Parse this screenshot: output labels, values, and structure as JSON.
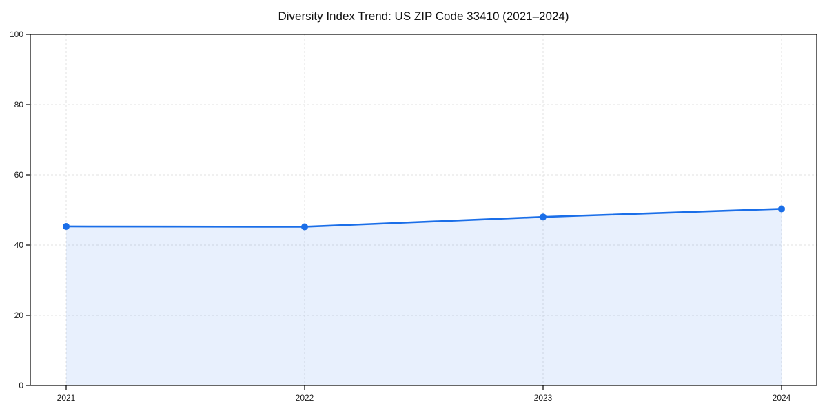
{
  "page": {
    "background_color": "#ffffff"
  },
  "chart_data": {
    "type": "area",
    "title": "Diversity Index Trend: US ZIP Code 33410 (2021–2024)",
    "categories": [
      "2021",
      "2022",
      "2023",
      "2024"
    ],
    "series": [
      {
        "name": "Diversity Index",
        "values": [
          45.3,
          45.2,
          48.0,
          50.3
        ]
      }
    ],
    "xlabel": "",
    "ylabel": "",
    "ylim": [
      0,
      100
    ],
    "y_ticks": [
      0,
      20,
      40,
      60,
      80,
      100
    ],
    "x_tick_labels": [
      "2021",
      "2022",
      "2023",
      "2024"
    ],
    "grid": "dashed",
    "legend_position": "none",
    "style": {
      "line_color": "#1a6ee8",
      "marker_color": "#1a6ee8",
      "fill_color": "#1a6ee8",
      "fill_opacity": 0.1,
      "grid_color": "#e0e0e0",
      "axis_border_color": "#000000",
      "tick_label_color": "#1a1a1a",
      "title_color": "#111111"
    }
  }
}
